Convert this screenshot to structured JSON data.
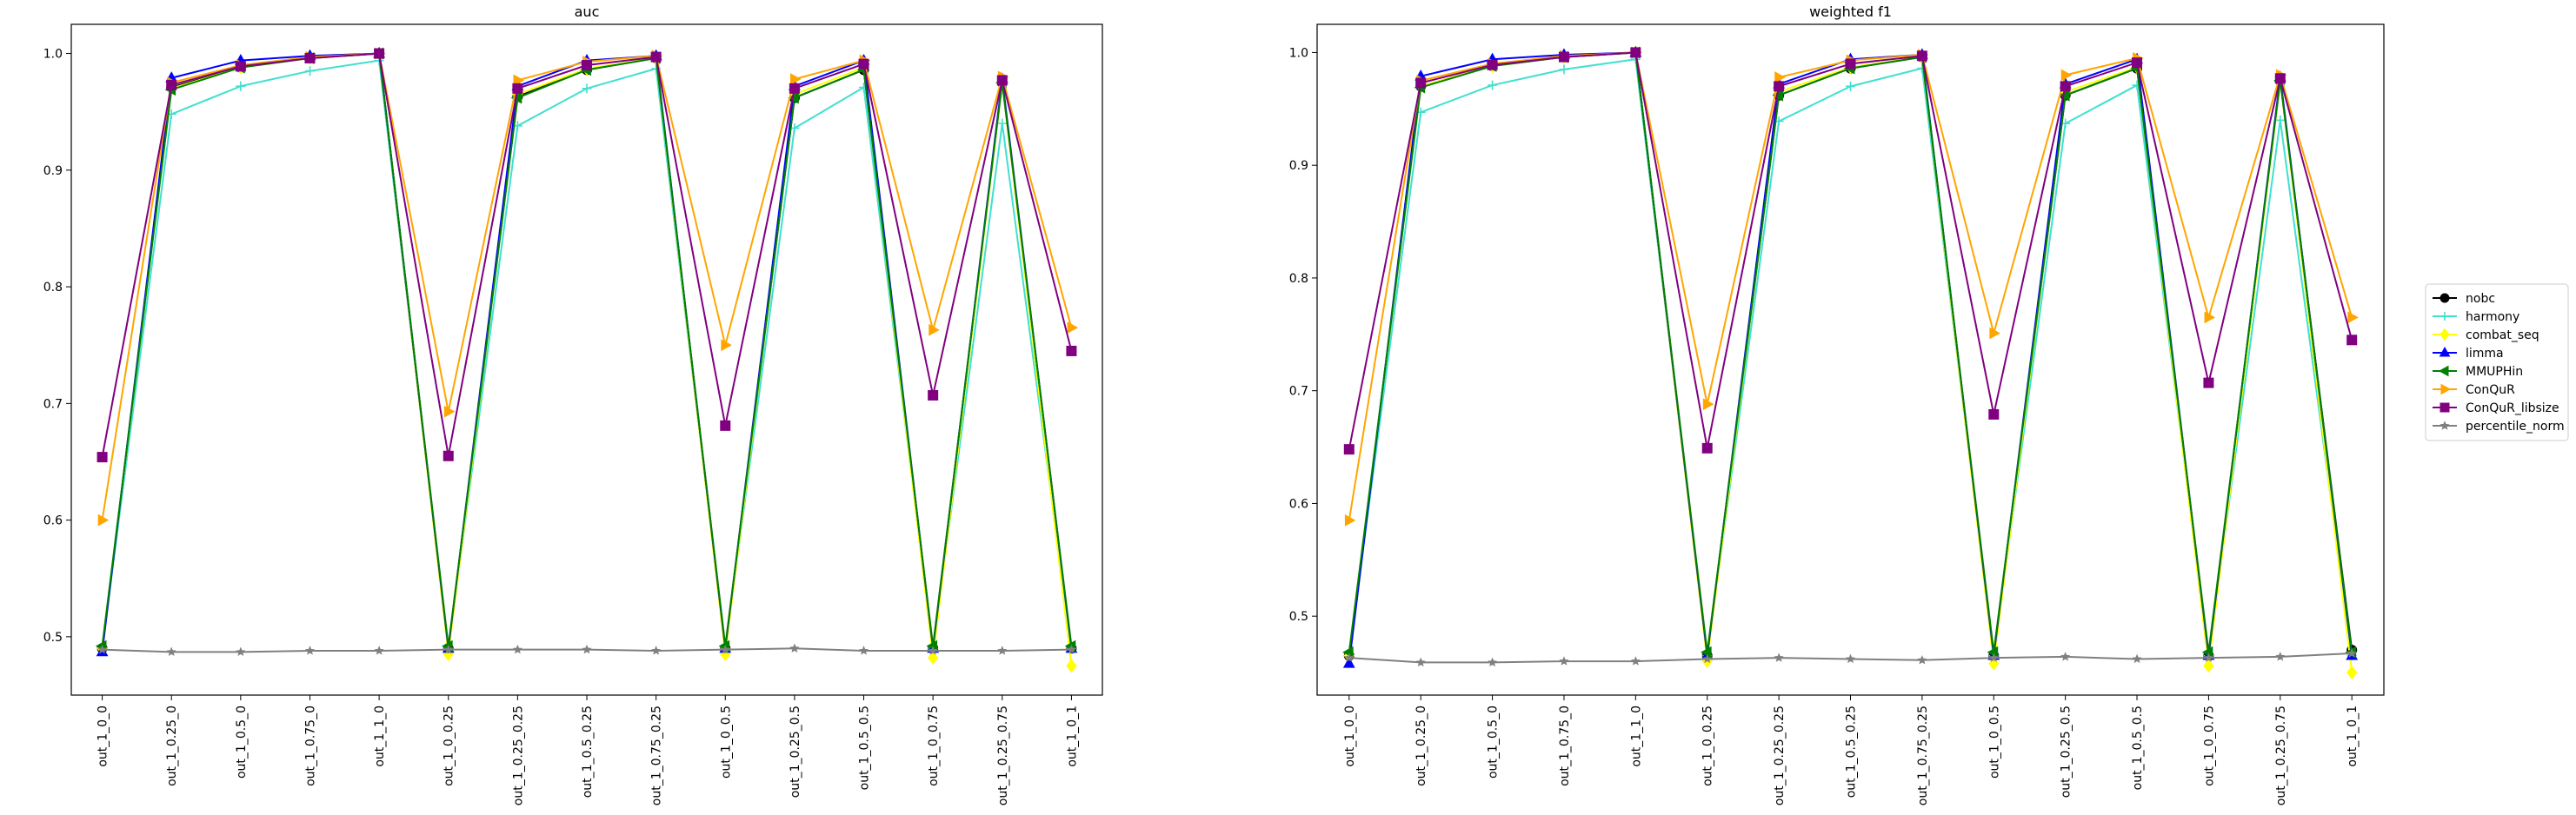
{
  "legend": {
    "placement": "right-center",
    "entries": [
      {
        "name": "nobc",
        "color": "#000000",
        "marker": "circle"
      },
      {
        "name": "harmony",
        "color": "#40e0d0",
        "marker": "plus"
      },
      {
        "name": "combat_seq",
        "color": "#ffff00",
        "marker": "diamond"
      },
      {
        "name": "limma",
        "color": "#0000ff",
        "marker": "triangle-up"
      },
      {
        "name": "MMUPHin",
        "color": "#008000",
        "marker": "triangle-left"
      },
      {
        "name": "ConQuR",
        "color": "#ffa500",
        "marker": "triangle-right"
      },
      {
        "name": "ConQuR_libsize",
        "color": "#800080",
        "marker": "square"
      },
      {
        "name": "percentile_norm",
        "color": "#808080",
        "marker": "star"
      }
    ]
  },
  "chart_data": [
    {
      "type": "line",
      "title": "auc",
      "xlabel": "",
      "ylabel": "",
      "grid": false,
      "ylim": [
        0.45,
        1.025
      ],
      "yticks": [
        0.5,
        0.6,
        0.7,
        0.8,
        0.9,
        1.0
      ],
      "ytick_labels": [
        "0.5",
        "0.6",
        "0.7",
        "0.8",
        "0.9",
        "1.0"
      ],
      "categories": [
        "out_1_0_0",
        "out_1_0.25_0",
        "out_1_0.5_0",
        "out_1_0.75_0",
        "out_1_1_0",
        "out_1_0_0.25",
        "out_1_0.25_0.25",
        "out_1_0.5_0.25",
        "out_1_0.75_0.25",
        "out_1_0_0.5",
        "out_1_0.25_0.5",
        "out_1_0.5_0.5",
        "out_1_0_0.75",
        "out_1_0.25_0.75",
        "out_1_0_1"
      ],
      "series": [
        {
          "name": "nobc",
          "color": "#000000",
          "marker": "circle",
          "values": [
            0.49,
            0.971,
            0.988,
            0.996,
            1.0,
            0.49,
            0.963,
            0.986,
            0.996,
            0.49,
            0.962,
            0.986,
            0.49,
            0.975,
            0.49
          ]
        },
        {
          "name": "harmony",
          "color": "#40e0d0",
          "marker": "plus",
          "values": [
            0.49,
            0.948,
            0.972,
            0.985,
            0.994,
            0.49,
            0.938,
            0.97,
            0.987,
            0.49,
            0.936,
            0.971,
            0.49,
            0.94,
            0.49
          ]
        },
        {
          "name": "combat_seq",
          "color": "#ffff00",
          "marker": "diamond",
          "values": [
            0.49,
            0.97,
            0.988,
            0.996,
            1.0,
            0.485,
            0.965,
            0.987,
            0.996,
            0.485,
            0.965,
            0.988,
            0.482,
            0.975,
            0.475
          ]
        },
        {
          "name": "limma",
          "color": "#0000ff",
          "marker": "triangle-up",
          "values": [
            0.487,
            0.979,
            0.994,
            0.998,
            1.0,
            0.49,
            0.972,
            0.994,
            0.998,
            0.49,
            0.972,
            0.994,
            0.49,
            0.978,
            0.49
          ]
        },
        {
          "name": "MMUPHin",
          "color": "#008000",
          "marker": "triangle-left",
          "values": [
            0.492,
            0.969,
            0.988,
            0.996,
            1.0,
            0.492,
            0.962,
            0.986,
            0.996,
            0.492,
            0.962,
            0.986,
            0.492,
            0.975,
            0.492
          ]
        },
        {
          "name": "ConQuR",
          "color": "#ffa500",
          "marker": "triangle-right",
          "values": [
            0.6,
            0.975,
            0.99,
            0.997,
            1.0,
            0.693,
            0.977,
            0.993,
            0.998,
            0.75,
            0.978,
            0.994,
            0.763,
            0.98,
            0.765
          ]
        },
        {
          "name": "ConQuR_libsize",
          "color": "#800080",
          "marker": "square",
          "values": [
            0.654,
            0.973,
            0.989,
            0.996,
            1.0,
            0.655,
            0.97,
            0.99,
            0.997,
            0.681,
            0.97,
            0.991,
            0.707,
            0.977,
            0.745
          ]
        },
        {
          "name": "percentile_norm",
          "color": "#808080",
          "marker": "star",
          "values": [
            0.489,
            0.487,
            0.487,
            0.488,
            0.488,
            0.489,
            0.489,
            0.489,
            0.488,
            0.489,
            0.49,
            0.488,
            0.488,
            0.488,
            0.489
          ]
        }
      ]
    },
    {
      "type": "line",
      "title": "weighted f1",
      "xlabel": "",
      "ylabel": "",
      "grid": false,
      "ylim": [
        0.43,
        1.025
      ],
      "yticks": [
        0.5,
        0.6,
        0.7,
        0.8,
        0.9,
        1.0
      ],
      "ytick_labels": [
        "0.5",
        "0.6",
        "0.7",
        "0.8",
        "0.9",
        "1.0"
      ],
      "categories": [
        "out_1_0_0",
        "out_1_0.25_0",
        "out_1_0.5_0",
        "out_1_0.75_0",
        "out_1_1_0",
        "out_1_0_0.25",
        "out_1_0.25_0.25",
        "out_1_0.5_0.25",
        "out_1_0.75_0.25",
        "out_1_0_0.5",
        "out_1_0.25_0.5",
        "out_1_0.5_0.5",
        "out_1_0_0.75",
        "out_1_0.25_0.75",
        "out_1_0_1"
      ],
      "series": [
        {
          "name": "nobc",
          "color": "#000000",
          "marker": "circle",
          "values": [
            0.465,
            0.97,
            0.988,
            0.996,
            1.0,
            0.465,
            0.962,
            0.986,
            0.996,
            0.465,
            0.962,
            0.986,
            0.465,
            0.975,
            0.47
          ]
        },
        {
          "name": "harmony",
          "color": "#40e0d0",
          "marker": "plus",
          "values": [
            0.465,
            0.947,
            0.971,
            0.985,
            0.994,
            0.465,
            0.939,
            0.97,
            0.986,
            0.465,
            0.937,
            0.971,
            0.465,
            0.94,
            0.465
          ]
        },
        {
          "name": "combat_seq",
          "color": "#ffff00",
          "marker": "diamond",
          "values": [
            0.465,
            0.97,
            0.988,
            0.996,
            1.0,
            0.46,
            0.965,
            0.987,
            0.996,
            0.458,
            0.965,
            0.987,
            0.456,
            0.975,
            0.45
          ]
        },
        {
          "name": "limma",
          "color": "#0000ff",
          "marker": "triangle-up",
          "values": [
            0.458,
            0.979,
            0.994,
            0.998,
            1.0,
            0.465,
            0.972,
            0.994,
            0.998,
            0.465,
            0.972,
            0.994,
            0.465,
            0.978,
            0.465
          ]
        },
        {
          "name": "MMUPHin",
          "color": "#008000",
          "marker": "triangle-left",
          "values": [
            0.468,
            0.969,
            0.988,
            0.996,
            1.0,
            0.468,
            0.962,
            0.986,
            0.996,
            0.468,
            0.962,
            0.986,
            0.468,
            0.975,
            0.468
          ]
        },
        {
          "name": "ConQuR",
          "color": "#ffa500",
          "marker": "triangle-right",
          "values": [
            0.585,
            0.975,
            0.99,
            0.997,
            1.0,
            0.688,
            0.978,
            0.993,
            0.998,
            0.751,
            0.98,
            0.995,
            0.765,
            0.98,
            0.765
          ]
        },
        {
          "name": "ConQuR_libsize",
          "color": "#800080",
          "marker": "square",
          "values": [
            0.648,
            0.973,
            0.989,
            0.996,
            1.0,
            0.649,
            0.97,
            0.99,
            0.997,
            0.679,
            0.97,
            0.991,
            0.707,
            0.977,
            0.745
          ]
        },
        {
          "name": "percentile_norm",
          "color": "#808080",
          "marker": "star",
          "values": [
            0.463,
            0.459,
            0.459,
            0.46,
            0.46,
            0.462,
            0.463,
            0.462,
            0.461,
            0.463,
            0.464,
            0.462,
            0.463,
            0.464,
            0.467
          ]
        }
      ]
    }
  ]
}
